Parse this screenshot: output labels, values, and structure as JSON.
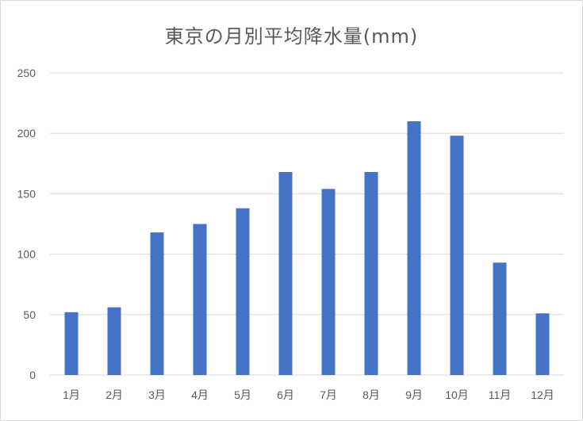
{
  "chart_data": {
    "type": "bar",
    "title": "東京の月別平均降水量(mm)",
    "xlabel": "",
    "ylabel": "",
    "categories": [
      "1月",
      "2月",
      "3月",
      "4月",
      "5月",
      "6月",
      "7月",
      "8月",
      "9月",
      "10月",
      "11月",
      "12月"
    ],
    "values": [
      52,
      56,
      118,
      125,
      138,
      168,
      154,
      168,
      210,
      198,
      93,
      51
    ],
    "ylim": [
      0,
      250
    ],
    "yticks": [
      "0",
      "50",
      "100",
      "150",
      "200",
      "250"
    ],
    "grid": true,
    "legend": "none",
    "bar_color": "#4472c4",
    "grid_color": "#d9d9d9"
  }
}
